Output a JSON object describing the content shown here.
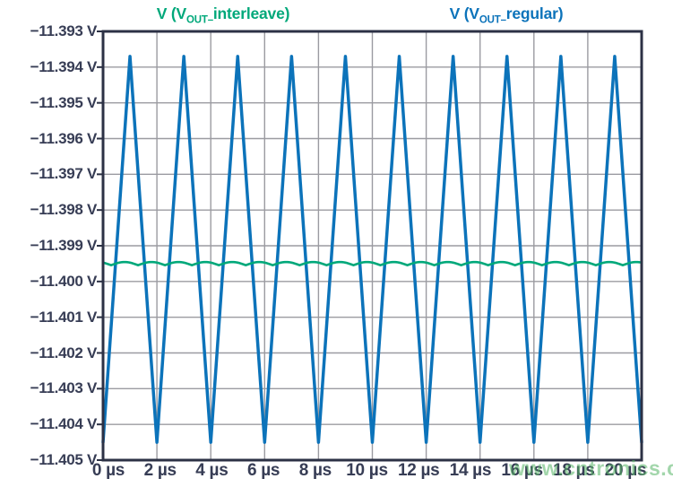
{
  "figure": {
    "watermark": "www.cntronics.com"
  },
  "legend": {
    "interleave": {
      "pre": "V (V",
      "sub": "OUT–",
      "post": "interleave)"
    },
    "regular": {
      "pre": "V (V",
      "sub": "OUT–",
      "post": "regular)"
    }
  },
  "colors": {
    "interleave_green": "#00a87a",
    "regular_blue": "#0c73ba",
    "frame": "#2c3145",
    "grid": "#9b9ba1",
    "label": "#373d55",
    "watermark_green": "#57b567",
    "background": "#ffffff"
  },
  "chart_data": {
    "type": "line",
    "title": "",
    "xlabel": "",
    "ylabel": "",
    "legend_position": "top",
    "grid": true,
    "x_axis": {
      "unit": "µs",
      "min": 0,
      "max": 20,
      "tick_step_us": 2,
      "tick_labels": [
        "0 µs",
        "2 µs",
        "4 µs",
        "6 µs",
        "8 µs",
        "10 µs",
        "12 µs",
        "14 µs",
        "16 µs",
        "18 µs",
        "20 µs"
      ]
    },
    "y_axis": {
      "unit": "V",
      "min": -11.405,
      "max": -11.393,
      "tick_step_v": 0.001,
      "tick_labels": [
        "−11.393 V",
        "−11.394 V",
        "−11.395 V",
        "−11.396 V",
        "−11.397 V",
        "−11.398 V",
        "−11.399 V",
        "−11.400 V",
        "−11.401 V",
        "−11.402 V",
        "−11.403 V",
        "−11.404 V",
        "−11.405 V"
      ]
    },
    "series": [
      {
        "name": "V (V_OUT–interleave)",
        "color": "#00a87a",
        "waveform": "rectified-sine-ripple",
        "mean_v": -11.3995,
        "peak_to_peak_v": 9e-05,
        "period_us": 1,
        "phase_us": 0.3
      },
      {
        "name": "V (V_OUT–regular)",
        "color": "#0c73ba",
        "waveform": "triangle",
        "min_v": -11.4045,
        "max_v": -11.3937,
        "period_us": 2,
        "trough_at_us": 0
      }
    ]
  }
}
